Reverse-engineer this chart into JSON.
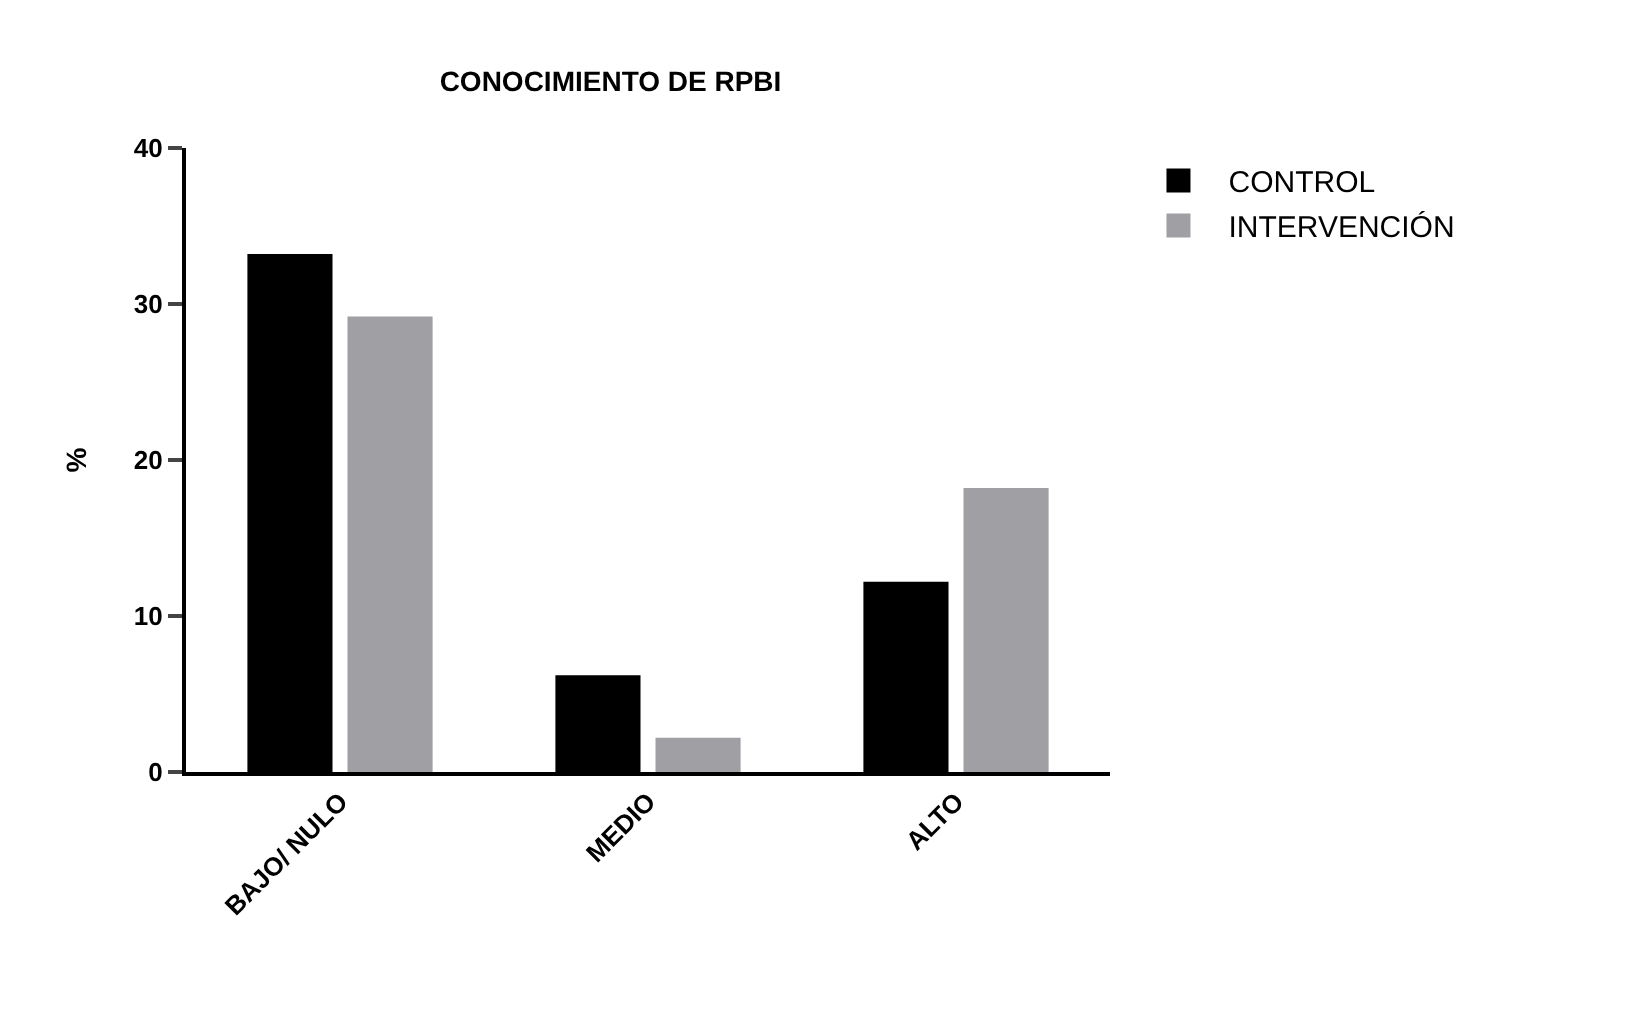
{
  "chart_data": {
    "type": "bar",
    "title": "CONOCIMIENTO DE RPBI",
    "ylabel": "%",
    "categories": [
      "BAJO/ NULO",
      "MEDIO",
      "ALTO"
    ],
    "series": [
      {
        "name": "CONTROL",
        "color": "#000000",
        "values": [
          33.2,
          6.2,
          12.2
        ]
      },
      {
        "name": "INTERVENCIÓN",
        "color": "#a0a0a4",
        "values": [
          29.2,
          2.2,
          18.2
        ]
      }
    ],
    "ylim": [
      0,
      40
    ],
    "yticks": [
      0,
      10,
      20,
      30,
      40
    ],
    "grid": false,
    "legend": "top right"
  }
}
